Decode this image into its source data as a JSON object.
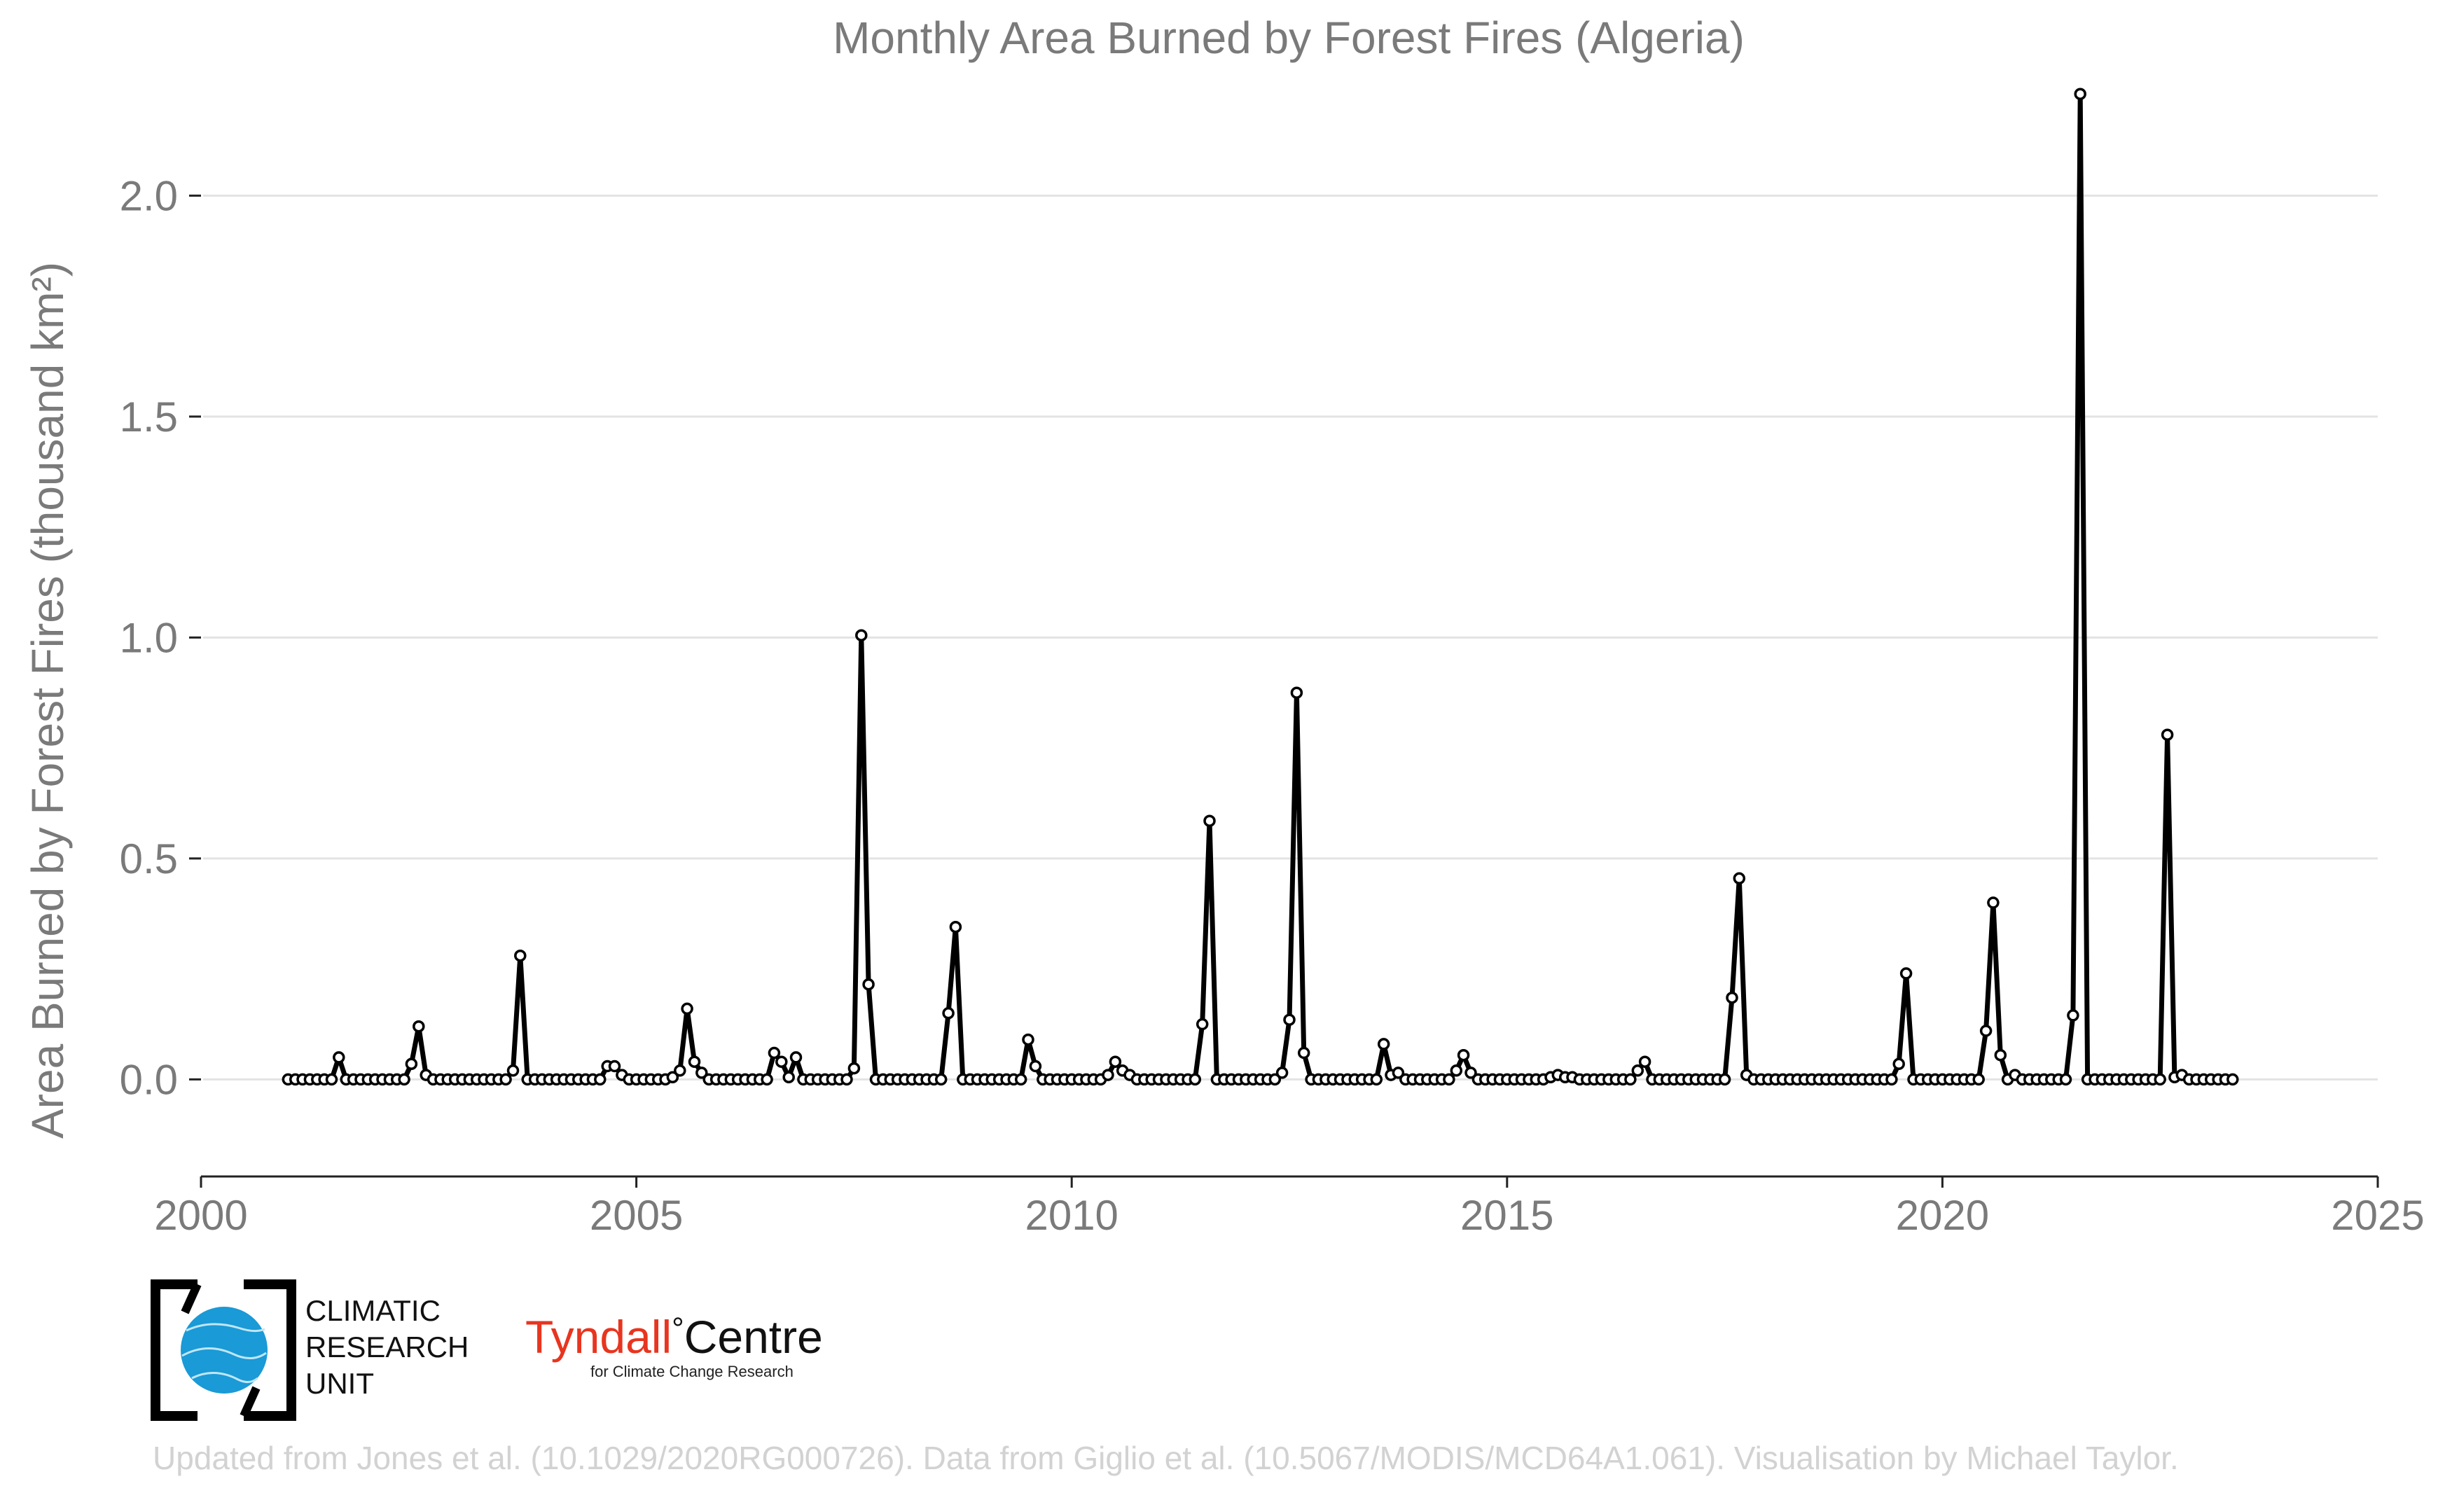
{
  "chart_data": {
    "type": "line",
    "title": "Monthly Area Burned by Forest Fires (Algeria)",
    "xlabel": "",
    "ylabel": "Area Burned by Forest Fires (thousand km²)",
    "xlim": [
      2000,
      2025
    ],
    "ylim": [
      -0.18,
      2.3
    ],
    "x_ticks": [
      "2000",
      "2005",
      "2010",
      "2015",
      "2020",
      "2025"
    ],
    "y_ticks": [
      "0.0",
      "0.5",
      "1.0",
      "1.5",
      "2.0"
    ],
    "grid": "horizontal",
    "x_start": "2001-01",
    "x_end": "2023-05",
    "series": [
      {
        "values": [
          0,
          0,
          0,
          0,
          0,
          0,
          0,
          0.05,
          0,
          0,
          0,
          0,
          0,
          0,
          0,
          0,
          0,
          0.035,
          0.12,
          0.01,
          0,
          0,
          0,
          0,
          0,
          0,
          0,
          0,
          0,
          0,
          0,
          0.02,
          0.28,
          0,
          0,
          0,
          0,
          0,
          0,
          0,
          0,
          0,
          0,
          0,
          0.03,
          0.03,
          0.01,
          0,
          0,
          0,
          0,
          0,
          0,
          0.005,
          0.02,
          0.16,
          0.04,
          0.015,
          0,
          0,
          0,
          0,
          0,
          0,
          0,
          0,
          0,
          0.06,
          0.04,
          0.005,
          0.05,
          0,
          0,
          0,
          0,
          0,
          0,
          0,
          0.025,
          1.005,
          0.215,
          0,
          0,
          0,
          0,
          0,
          0,
          0,
          0,
          0,
          0,
          0.15,
          0.345,
          0,
          0,
          0,
          0,
          0,
          0,
          0,
          0,
          0,
          0.09,
          0.03,
          0,
          0,
          0,
          0,
          0,
          0,
          0,
          0,
          0,
          0.01,
          0.04,
          0.02,
          0.01,
          0,
          0,
          0,
          0,
          0,
          0,
          0,
          0,
          0,
          0.125,
          0.585,
          0,
          0,
          0,
          0,
          0,
          0,
          0,
          0,
          0,
          0.015,
          0.135,
          0.875,
          0.06,
          0,
          0,
          0,
          0,
          0,
          0,
          0,
          0,
          0,
          0,
          0.08,
          0.01,
          0.015,
          0,
          0,
          0,
          0,
          0,
          0,
          0,
          0.02,
          0.055,
          0.015,
          0,
          0,
          0,
          0,
          0,
          0,
          0,
          0,
          0,
          0,
          0.005,
          0.01,
          0.005,
          0.005,
          0,
          0,
          0,
          0,
          0,
          0,
          0,
          0,
          0.02,
          0.04,
          0,
          0,
          0,
          0,
          0,
          0,
          0,
          0,
          0,
          0,
          0,
          0.185,
          0.455,
          0.01,
          0,
          0,
          0,
          0,
          0,
          0,
          0,
          0,
          0,
          0,
          0,
          0,
          0,
          0,
          0,
          0,
          0,
          0,
          0,
          0,
          0.035,
          0.24,
          0,
          0,
          0,
          0,
          0,
          0,
          0,
          0,
          0,
          0,
          0.11,
          0.4,
          0.055,
          0,
          0.01,
          0,
          0,
          0,
          0,
          0,
          0,
          0,
          0.145,
          2.23,
          0,
          0,
          0,
          0,
          0,
          0,
          0,
          0,
          0,
          0,
          0,
          0.78,
          0.005,
          0.01,
          0,
          0,
          0,
          0,
          0,
          0,
          0
        ]
      }
    ]
  },
  "logos": {
    "cru_lines": [
      "CLIMATIC",
      "RESEARCH",
      "UNIT"
    ],
    "tyndall_word": "Tyndall",
    "tyndall_degree": "°",
    "tyndall_centre": "Centre",
    "tyndall_sub": "for Climate Change Research"
  },
  "credit": "Updated from Jones et al. (10.1029/2020RG000726). Data from Giglio et al. (10.5067/MODIS/MCD64A1.061). Visualisation by Michael Taylor.",
  "colors": {
    "line": "#000000",
    "tyndall_red": "#e8351f",
    "cru_blue": "#1a9ad6"
  }
}
